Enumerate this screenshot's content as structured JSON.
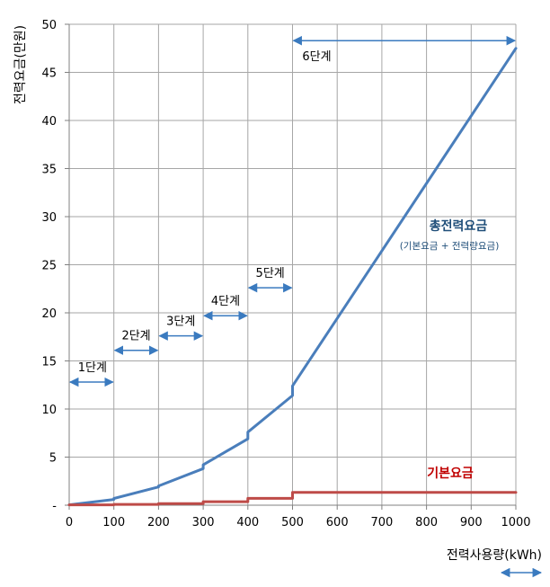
{
  "chart_data": {
    "type": "line",
    "ylabel": "전력요금(만원)",
    "xlabel": "전력사용량(kWh)",
    "xlim": [
      0,
      1000
    ],
    "ylim": [
      0,
      50
    ],
    "xticks": [
      "0",
      "100",
      "200",
      "300",
      "400",
      "500",
      "600",
      "700",
      "800",
      "900",
      "1000"
    ],
    "yticks": [
      "-",
      "5",
      "10",
      "15",
      "20",
      "25",
      "30",
      "35",
      "40",
      "45",
      "50"
    ],
    "grid": true,
    "colors": {
      "total": "#4a7ebb",
      "base": "#be4b48",
      "arrow": "#3a7abf",
      "grid": "#a6a6a6"
    },
    "series": [
      {
        "name": "총전력요금",
        "sublabel": "(기본요금 + 전력량요금)",
        "x": [
          0,
          100,
          100,
          200,
          200,
          300,
          300,
          400,
          400,
          500,
          500,
          1000
        ],
        "y": [
          0.04,
          0.6,
          0.7,
          1.9,
          2.0,
          3.8,
          4.2,
          6.9,
          7.6,
          11.4,
          12.4,
          47.5
        ]
      },
      {
        "name": "기본요금",
        "x": [
          0,
          100,
          100,
          200,
          200,
          300,
          300,
          400,
          400,
          500,
          500,
          1000
        ],
        "y": [
          0.04,
          0.04,
          0.08,
          0.08,
          0.17,
          0.17,
          0.36,
          0.36,
          0.71,
          0.71,
          1.33,
          1.33
        ]
      }
    ],
    "annotations": [
      {
        "label": "1단계",
        "from": 0,
        "to": 100,
        "y": 12.8
      },
      {
        "label": "2단계",
        "from": 100,
        "to": 200,
        "y": 16.1
      },
      {
        "label": "3단계",
        "from": 200,
        "to": 300,
        "y": 17.6
      },
      {
        "label": "4단계",
        "from": 300,
        "to": 400,
        "y": 19.7
      },
      {
        "label": "5단계",
        "from": 400,
        "to": 500,
        "y": 22.6
      },
      {
        "label": "6단계",
        "from": 500,
        "to": 1000,
        "y": 48.3
      }
    ]
  }
}
